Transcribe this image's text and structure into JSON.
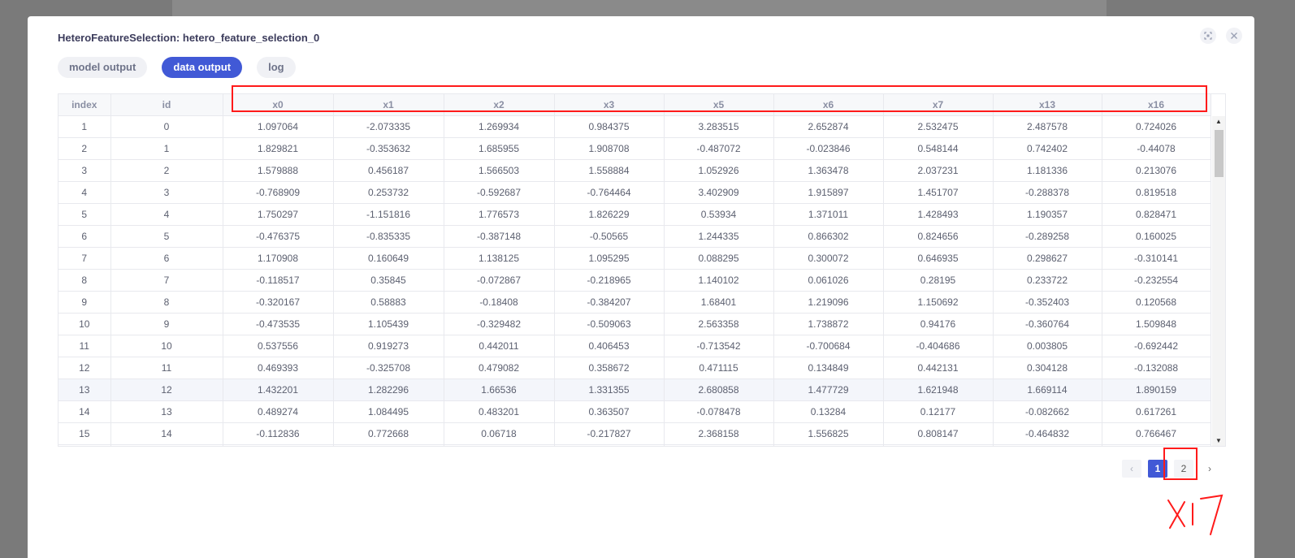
{
  "dialog": {
    "title": "HeteroFeatureSelection: hetero_feature_selection_0",
    "screenshot_icon": "screenshot-icon",
    "close_icon": "close-icon"
  },
  "tabs": [
    {
      "label": "model output",
      "active": false
    },
    {
      "label": "data output",
      "active": true
    },
    {
      "label": "log",
      "active": false
    }
  ],
  "table": {
    "columns": [
      "index",
      "id",
      "x0",
      "x1",
      "x2",
      "x3",
      "x5",
      "x6",
      "x7",
      "x13",
      "x16"
    ],
    "rows": [
      [
        "1",
        "0",
        "1.097064",
        "-2.073335",
        "1.269934",
        "0.984375",
        "3.283515",
        "2.652874",
        "2.532475",
        "2.487578",
        "0.724026"
      ],
      [
        "2",
        "1",
        "1.829821",
        "-0.353632",
        "1.685955",
        "1.908708",
        "-0.487072",
        "-0.023846",
        "0.548144",
        "0.742402",
        "-0.44078"
      ],
      [
        "3",
        "2",
        "1.579888",
        "0.456187",
        "1.566503",
        "1.558884",
        "1.052926",
        "1.363478",
        "2.037231",
        "1.181336",
        "0.213076"
      ],
      [
        "4",
        "3",
        "-0.768909",
        "0.253732",
        "-0.592687",
        "-0.764464",
        "3.402909",
        "1.915897",
        "1.451707",
        "-0.288378",
        "0.819518"
      ],
      [
        "5",
        "4",
        "1.750297",
        "-1.151816",
        "1.776573",
        "1.826229",
        "0.53934",
        "1.371011",
        "1.428493",
        "1.190357",
        "0.828471"
      ],
      [
        "6",
        "5",
        "-0.476375",
        "-0.835335",
        "-0.387148",
        "-0.50565",
        "1.244335",
        "0.866302",
        "0.824656",
        "-0.289258",
        "0.160025"
      ],
      [
        "7",
        "6",
        "1.170908",
        "0.160649",
        "1.138125",
        "1.095295",
        "0.088295",
        "0.300072",
        "0.646935",
        "0.298627",
        "-0.310141"
      ],
      [
        "8",
        "7",
        "-0.118517",
        "0.35845",
        "-0.072867",
        "-0.218965",
        "1.140102",
        "0.061026",
        "0.28195",
        "0.233722",
        "-0.232554"
      ],
      [
        "9",
        "8",
        "-0.320167",
        "0.58883",
        "-0.18408",
        "-0.384207",
        "1.68401",
        "1.219096",
        "1.150692",
        "-0.352403",
        "0.120568"
      ],
      [
        "10",
        "9",
        "-0.473535",
        "1.105439",
        "-0.329482",
        "-0.509063",
        "2.563358",
        "1.738872",
        "0.94176",
        "-0.360764",
        "1.509848"
      ],
      [
        "11",
        "10",
        "0.537556",
        "0.919273",
        "0.442011",
        "0.406453",
        "-0.713542",
        "-0.700684",
        "-0.404686",
        "0.003805",
        "-0.692442"
      ],
      [
        "12",
        "11",
        "0.469393",
        "-0.325708",
        "0.479082",
        "0.358672",
        "0.471115",
        "0.134849",
        "0.442131",
        "0.304128",
        "-0.132088"
      ],
      [
        "13",
        "12",
        "1.432201",
        "1.282296",
        "1.66536",
        "1.331355",
        "2.680858",
        "1.477729",
        "1.621948",
        "1.669114",
        "1.890159"
      ],
      [
        "14",
        "13",
        "0.489274",
        "1.084495",
        "0.483201",
        "0.363507",
        "-0.078478",
        "0.13284",
        "0.12177",
        "-0.082662",
        "0.617261"
      ],
      [
        "15",
        "14",
        "-0.112836",
        "0.772668",
        "0.06718",
        "-0.217827",
        "2.368158",
        "1.556825",
        "0.808147",
        "-0.464832",
        "0.766467"
      ]
    ],
    "highlighted_row": 12
  },
  "pagination": {
    "prev_icon": "chevron-left-icon",
    "pages": [
      "1",
      "2"
    ],
    "current": "1",
    "next_icon": "chevron-right-icon"
  },
  "annotation": {
    "handwritten_text": "X17",
    "color": "#ff1a1a"
  }
}
